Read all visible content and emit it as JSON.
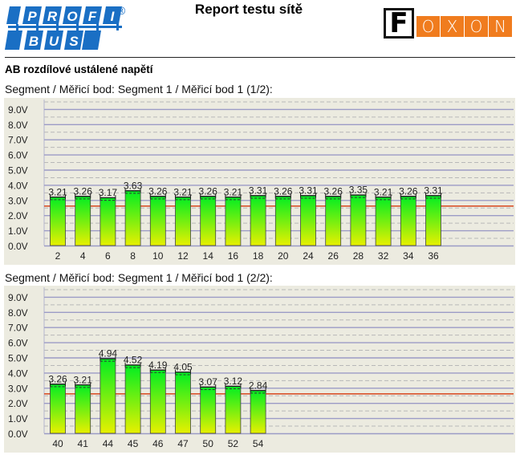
{
  "header": {
    "title": "Report testu sítě",
    "left_logo": {
      "text_top": "PROFI",
      "text_bottom": "BUS",
      "registered": "®",
      "color": "#1a6fc4"
    },
    "right_logo": {
      "f_letter": "F",
      "letters": [
        "O",
        "X",
        "O",
        "N"
      ],
      "color": "#f07c1e"
    }
  },
  "section": {
    "title": "AB rozdílové ustálené napětí"
  },
  "colors": {
    "chart_bg": "#ecebe0",
    "grid_solid": "#9b9bc6",
    "grid_dashed": "#b8b8b8",
    "threshold": "#d9532c",
    "bar_top": "#00ee22",
    "bar_bottom": "#e8f000"
  },
  "chart_data": [
    {
      "type": "bar",
      "title": "Segment / Měřicí bod: Segment 1 / Měřicí bod 1 (1/2):",
      "xlabel": "",
      "ylabel": "",
      "ylim": [
        0,
        9.5
      ],
      "y_ticks": [
        "0.0V",
        "1.0V",
        "2.0V",
        "3.0V",
        "4.0V",
        "5.0V",
        "6.0V",
        "7.0V",
        "8.0V",
        "9.0V"
      ],
      "grid": true,
      "threshold": 2.6,
      "categories": [
        "2",
        "4",
        "6",
        "8",
        "10",
        "12",
        "14",
        "16",
        "18",
        "20",
        "24",
        "26",
        "28",
        "32",
        "34",
        "36"
      ],
      "values": [
        3.21,
        3.26,
        3.17,
        3.63,
        3.26,
        3.21,
        3.26,
        3.21,
        3.31,
        3.26,
        3.31,
        3.26,
        3.35,
        3.21,
        3.26,
        3.31
      ],
      "labels": [
        "3.21",
        "3.26",
        "3.17",
        "3.63",
        "3.26",
        "3.21",
        "3.26",
        "3.21",
        "3.31",
        "3.26",
        "3.31",
        "3.26",
        "3.35",
        "3.21",
        "3.26",
        "3.31"
      ]
    },
    {
      "type": "bar",
      "title": "Segment / Měřicí bod: Segment 1 / Měřicí bod 1 (2/2):",
      "xlabel": "",
      "ylabel": "",
      "ylim": [
        0,
        9.5
      ],
      "y_ticks": [
        "0.0V",
        "1.0V",
        "2.0V",
        "3.0V",
        "4.0V",
        "5.0V",
        "6.0V",
        "7.0V",
        "8.0V",
        "9.0V"
      ],
      "grid": true,
      "threshold": 2.6,
      "categories": [
        "40",
        "41",
        "44",
        "45",
        "46",
        "47",
        "50",
        "52",
        "54"
      ],
      "values": [
        3.26,
        3.21,
        4.94,
        4.52,
        4.19,
        4.05,
        3.07,
        3.12,
        2.84
      ],
      "labels": [
        "3.26",
        "3.21",
        "4.94",
        "4.52",
        "4.19",
        "4.05",
        "3.07",
        "3.12",
        "2.84"
      ]
    }
  ]
}
